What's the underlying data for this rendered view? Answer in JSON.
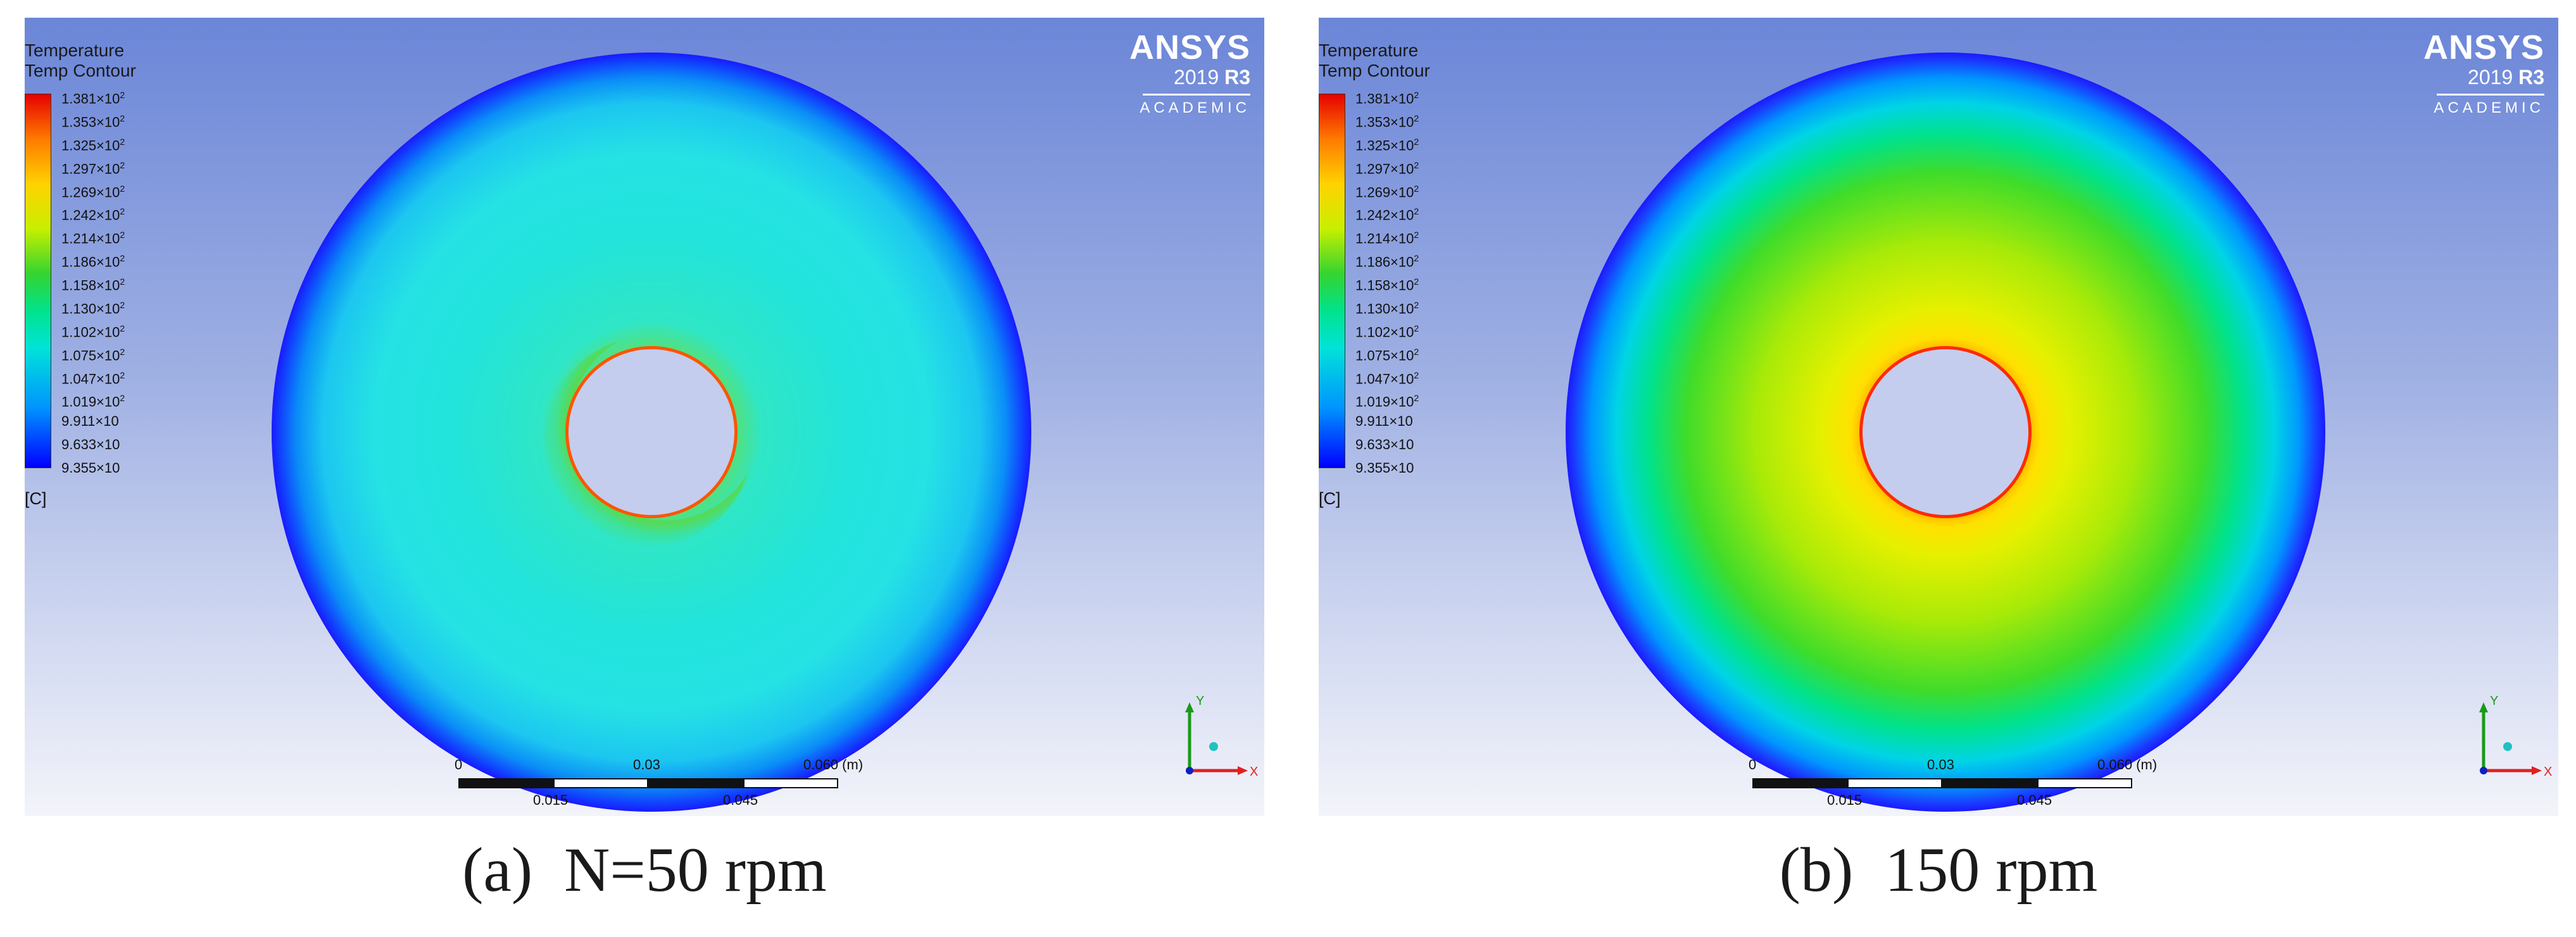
{
  "legend": {
    "title_line1": "Temperature",
    "title_line2": "Temp Contour",
    "unit": "[C]",
    "colors": [
      "#e60000",
      "#ff7a00",
      "#ffd200",
      "#c8ef00",
      "#35d42f",
      "#00e38c",
      "#00e3d8",
      "#0094ff",
      "#0000ff"
    ],
    "ticks": [
      {
        "mantissa": "1.381×10",
        "exp": "2"
      },
      {
        "mantissa": "1.353×10",
        "exp": "2"
      },
      {
        "mantissa": "1.325×10",
        "exp": "2"
      },
      {
        "mantissa": "1.297×10",
        "exp": "2"
      },
      {
        "mantissa": "1.269×10",
        "exp": "2"
      },
      {
        "mantissa": "1.242×10",
        "exp": "2"
      },
      {
        "mantissa": "1.214×10",
        "exp": "2"
      },
      {
        "mantissa": "1.186×10",
        "exp": "2"
      },
      {
        "mantissa": "1.158×10",
        "exp": "2"
      },
      {
        "mantissa": "1.130×10",
        "exp": "2"
      },
      {
        "mantissa": "1.102×10",
        "exp": "2"
      },
      {
        "mantissa": "1.075×10",
        "exp": "2"
      },
      {
        "mantissa": "1.047×10",
        "exp": "2"
      },
      {
        "mantissa": "1.019×10",
        "exp": "2"
      },
      {
        "mantissa": "9.911×10",
        "exp": ""
      },
      {
        "mantissa": "9.633×10",
        "exp": ""
      },
      {
        "mantissa": "9.355×10",
        "exp": ""
      }
    ]
  },
  "logo": {
    "brand": "ANSYS",
    "version_year": "2019",
    "version_release": "R3",
    "edition": "ACADEMIC"
  },
  "scale": {
    "labels_top": [
      "0",
      "0.03",
      "0.060 (m)"
    ],
    "labels_bottom": [
      "0.015",
      "0.045"
    ]
  },
  "axis": {
    "x": "X",
    "y": "Y"
  },
  "panels": [
    {
      "caption": "(a)  N=50 rpm",
      "ring_color": "#ff5500"
    },
    {
      "caption": "(b)  150 rpm",
      "ring_color": "#ff2a00"
    }
  ]
}
